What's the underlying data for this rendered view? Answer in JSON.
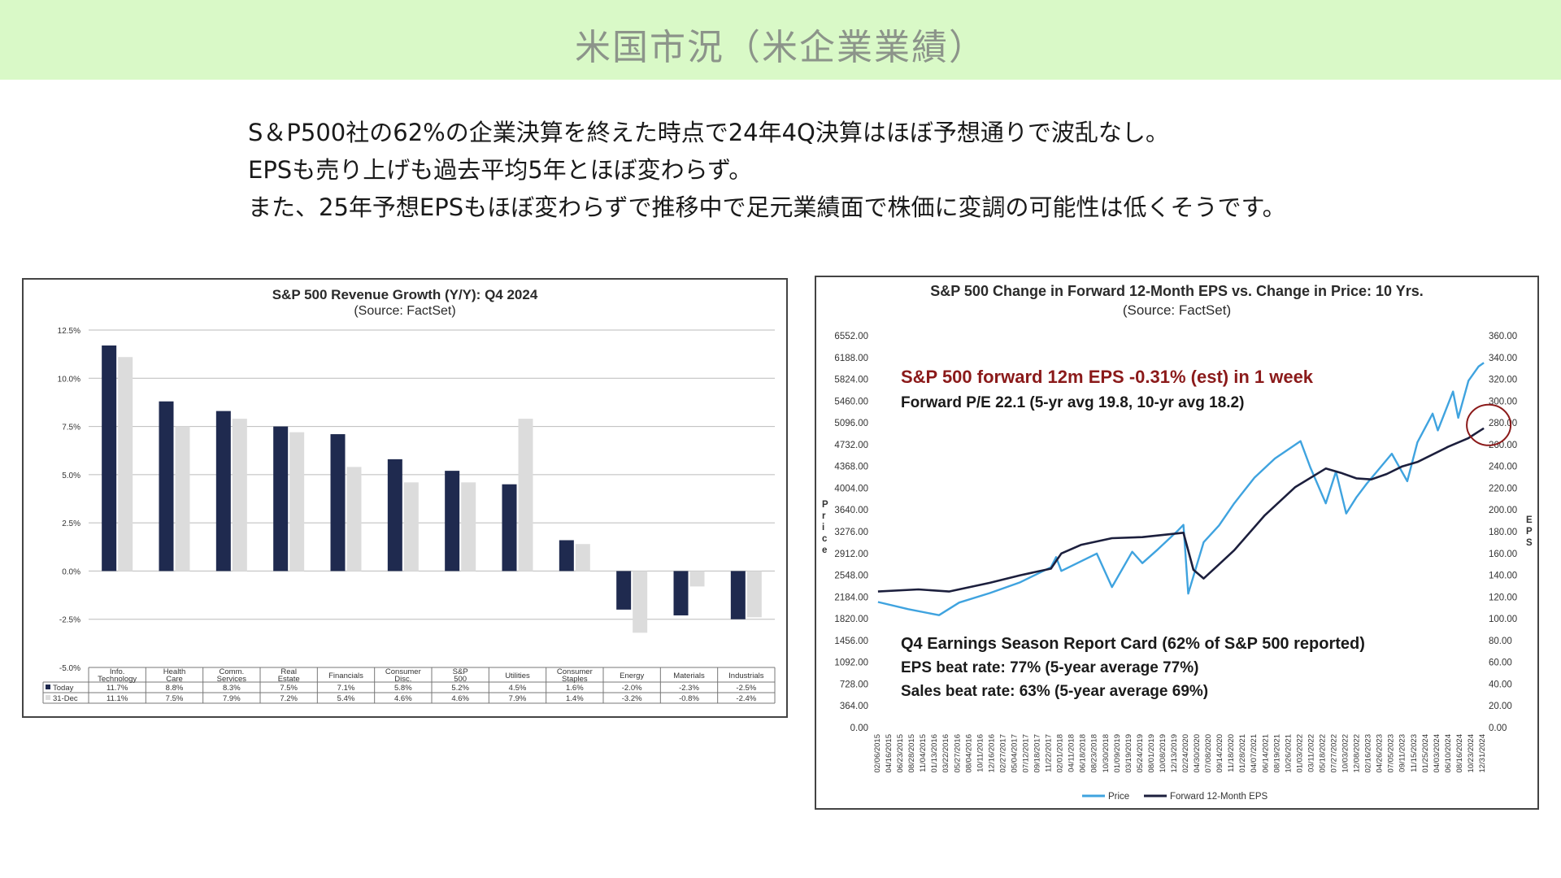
{
  "page": {
    "title": "米国市況（米企業業績）",
    "summary": [
      "S＆P500社の62%の企業決算を終えた時点で24年4Q決算はほぼ予想通りで波乱なし。",
      "EPSも売り上げも過去平均5年とほぼ変わらず。",
      "また、25年予想EPSもほぼ変わらずで推移中で足元業績面で株価に変調の可能性は低くそうです。"
    ]
  },
  "chart_data": [
    {
      "type": "bar",
      "title": "S&P 500 Revenue Growth (Y/Y): Q4 2024",
      "subtitle": "(Source: FactSet)",
      "categories": [
        "Info. Technology",
        "Health Care",
        "Comm. Services",
        "Real Estate",
        "Financials",
        "Consumer Disc.",
        "S&P 500",
        "Utilities",
        "Consumer Staples",
        "Energy",
        "Materials",
        "Industrials"
      ],
      "series": [
        {
          "name": "Today",
          "color": "#1f2a4f",
          "values": [
            11.7,
            8.8,
            8.3,
            7.5,
            7.1,
            5.8,
            5.2,
            4.5,
            1.6,
            -2.0,
            -2.3,
            -2.5
          ]
        },
        {
          "name": "31-Dec",
          "color": "#dcdcdc",
          "values": [
            11.1,
            7.5,
            7.9,
            7.2,
            5.4,
            4.6,
            4.6,
            7.9,
            1.4,
            -3.2,
            -0.8,
            -2.4
          ]
        }
      ],
      "table_labels": {
        "Today": [
          "11.7%",
          "8.8%",
          "8.3%",
          "7.5%",
          "7.1%",
          "5.8%",
          "5.2%",
          "4.5%",
          "1.6%",
          "-2.0%",
          "-2.3%",
          "-2.5%"
        ],
        "31-Dec": [
          "11.1%",
          "7.5%",
          "7.9%",
          "7.2%",
          "5.4%",
          "4.6%",
          "4.6%",
          "7.9%",
          "1.4%",
          "-3.2%",
          "-0.8%",
          "-2.4%"
        ]
      },
      "yticks": [
        "12.5%",
        "10.0%",
        "7.5%",
        "5.0%",
        "2.5%",
        "0.0%",
        "-2.5%",
        "-5.0%"
      ],
      "ylim": [
        -5.0,
        12.5
      ],
      "grid": true,
      "legend": "table"
    },
    {
      "type": "line",
      "title": "S&P 500 Change in Forward 12-Month EPS vs. Change in Price: 10 Yrs.",
      "subtitle": "(Source: FactSet)",
      "ylabel_left": "Price",
      "ylabel_right": "EPS",
      "ylim_left": [
        0,
        6552
      ],
      "ylim_right": [
        0,
        360
      ],
      "yticks_left": [
        "6552.00",
        "6188.00",
        "5824.00",
        "5460.00",
        "5096.00",
        "4732.00",
        "4368.00",
        "4004.00",
        "3640.00",
        "3276.00",
        "2912.00",
        "2548.00",
        "2184.00",
        "1820.00",
        "1456.00",
        "1092.00",
        "728.00",
        "364.00",
        "0.00"
      ],
      "yticks_right": [
        "360.00",
        "340.00",
        "320.00",
        "300.00",
        "280.00",
        "260.00",
        "240.00",
        "220.00",
        "200.00",
        "180.00",
        "160.00",
        "140.00",
        "120.00",
        "100.00",
        "80.00",
        "60.00",
        "40.00",
        "20.00",
        "0.00"
      ],
      "xticks": [
        "02/06/2015",
        "04/16/2015",
        "06/23/2015",
        "08/28/2015",
        "11/04/2015",
        "01/13/2016",
        "03/22/2016",
        "05/27/2016",
        "08/04/2016",
        "10/11/2016",
        "12/16/2016",
        "02/27/2017",
        "05/04/2017",
        "07/12/2017",
        "09/18/2017",
        "11/22/2017",
        "02/01/2018",
        "04/11/2018",
        "06/18/2018",
        "08/23/2018",
        "10/30/2018",
        "01/09/2019",
        "03/19/2019",
        "05/24/2019",
        "08/01/2019",
        "10/08/2019",
        "12/13/2019",
        "02/24/2020",
        "04/30/2020",
        "07/08/2020",
        "09/14/2020",
        "11/18/2020",
        "01/28/2021",
        "04/07/2021",
        "06/14/2021",
        "08/19/2021",
        "10/26/2021",
        "01/03/2022",
        "03/11/2022",
        "05/18/2022",
        "07/27/2022",
        "10/03/2022",
        "12/08/2022",
        "02/16/2023",
        "04/26/2023",
        "07/05/2023",
        "09/11/2023",
        "11/15/2023",
        "01/25/2024",
        "04/03/2024",
        "06/10/2024",
        "08/16/2024",
        "10/23/2024",
        "12/31/2024"
      ],
      "series": [
        {
          "name": "Price",
          "color": "#3fa3df",
          "axis": "left",
          "points": [
            [
              "2015-02",
              2100
            ],
            [
              "2015-08",
              1980
            ],
            [
              "2016-02",
              1880
            ],
            [
              "2016-06",
              2090
            ],
            [
              "2016-12",
              2250
            ],
            [
              "2017-06",
              2430
            ],
            [
              "2017-12",
              2680
            ],
            [
              "2018-01",
              2850
            ],
            [
              "2018-02",
              2620
            ],
            [
              "2018-09",
              2910
            ],
            [
              "2018-12",
              2350
            ],
            [
              "2019-04",
              2940
            ],
            [
              "2019-06",
              2750
            ],
            [
              "2019-09",
              2980
            ],
            [
              "2020-01",
              3300
            ],
            [
              "2020-02",
              3390
            ],
            [
              "2020-03",
              2240
            ],
            [
              "2020-06",
              3100
            ],
            [
              "2020-09",
              3380
            ],
            [
              "2020-12",
              3750
            ],
            [
              "2021-04",
              4180
            ],
            [
              "2021-08",
              4500
            ],
            [
              "2022-01",
              4790
            ],
            [
              "2022-03",
              4350
            ],
            [
              "2022-06",
              3750
            ],
            [
              "2022-08",
              4280
            ],
            [
              "2022-10",
              3580
            ],
            [
              "2022-12",
              3850
            ],
            [
              "2023-02",
              4080
            ],
            [
              "2023-07",
              4580
            ],
            [
              "2023-10",
              4120
            ],
            [
              "2023-12",
              4770
            ],
            [
              "2024-03",
              5250
            ],
            [
              "2024-04",
              4970
            ],
            [
              "2024-07",
              5620
            ],
            [
              "2024-08",
              5180
            ],
            [
              "2024-10",
              5800
            ],
            [
              "2024-12",
              6040
            ],
            [
              "2025-01",
              6100
            ]
          ]
        },
        {
          "name": "Forward 12-Month EPS",
          "color": "#1c1f3d",
          "axis": "right",
          "points": [
            [
              "2015-02",
              125
            ],
            [
              "2015-10",
              127
            ],
            [
              "2016-04",
              125
            ],
            [
              "2016-12",
              133
            ],
            [
              "2017-06",
              140
            ],
            [
              "2017-12",
              146
            ],
            [
              "2018-02",
              160
            ],
            [
              "2018-06",
              168
            ],
            [
              "2018-12",
              174
            ],
            [
              "2019-06",
              175
            ],
            [
              "2019-12",
              178
            ],
            [
              "2020-02",
              179
            ],
            [
              "2020-04",
              145
            ],
            [
              "2020-06",
              137
            ],
            [
              "2020-09",
              150
            ],
            [
              "2020-12",
              163
            ],
            [
              "2021-06",
              195
            ],
            [
              "2021-12",
              221
            ],
            [
              "2022-06",
              238
            ],
            [
              "2022-09",
              234
            ],
            [
              "2022-12",
              229
            ],
            [
              "2023-03",
              228
            ],
            [
              "2023-06",
              233
            ],
            [
              "2023-09",
              240
            ],
            [
              "2023-12",
              244
            ],
            [
              "2024-06",
              258
            ],
            [
              "2024-10",
              266
            ],
            [
              "2024-12",
              272
            ],
            [
              "2025-01",
              275
            ]
          ]
        }
      ],
      "annotations": {
        "headline": "S&P 500 forward 12m EPS -0.31% (est) in 1 week",
        "pe_line": "Forward P/E 22.1 (5-yr avg 19.8, 10-yr avg 18.2)",
        "report_title": "Q4 Earnings Season Report Card (62% of S&P 500 reported)",
        "eps_beat": "EPS beat rate: 77% (5-year average 77%)",
        "sales_beat": "Sales beat rate: 63% (5-year average 69%)"
      },
      "headline_color": "#8b1a1a",
      "highlight_circle_color": "#8b1a1a",
      "legend": "bottom"
    }
  ]
}
